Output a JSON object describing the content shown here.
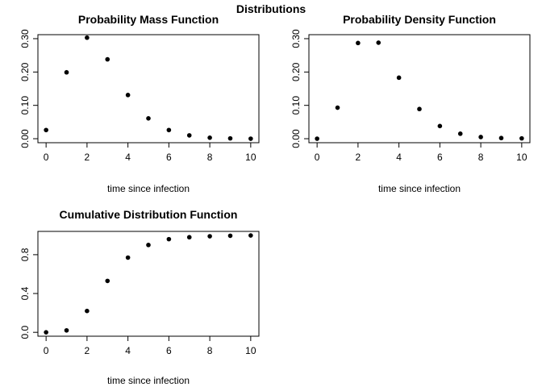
{
  "figure": {
    "title": "Distributions"
  },
  "chart_data": [
    {
      "type": "scatter",
      "title": "Probability Mass Function",
      "xlabel": "time since infection",
      "ylabel": "",
      "x": [
        0,
        1,
        2,
        3,
        4,
        5,
        6,
        7,
        8,
        9,
        10
      ],
      "y": [
        0.026,
        0.199,
        0.303,
        0.238,
        0.131,
        0.061,
        0.026,
        0.01,
        0.003,
        0.001,
        0.0
      ],
      "xlim": [
        0,
        10
      ],
      "ylim": [
        0,
        0.3
      ],
      "xticks": [
        "0",
        "2",
        "4",
        "6",
        "8",
        "10"
      ],
      "yticks": [
        "0.00",
        "0.10",
        "0.20",
        "0.30"
      ],
      "grid": false,
      "marker_color": "#000000"
    },
    {
      "type": "scatter",
      "title": "Probability Density Function",
      "xlabel": "time since infection",
      "ylabel": "",
      "x": [
        0,
        1,
        2,
        3,
        4,
        5,
        6,
        7,
        8,
        9,
        10
      ],
      "y": [
        0.0,
        0.093,
        0.287,
        0.288,
        0.183,
        0.089,
        0.038,
        0.015,
        0.005,
        0.002,
        0.001
      ],
      "xlim": [
        0,
        10
      ],
      "ylim": [
        0,
        0.3
      ],
      "xticks": [
        "0",
        "2",
        "4",
        "6",
        "8",
        "10"
      ],
      "yticks": [
        "0.00",
        "0.10",
        "0.20",
        "0.30"
      ],
      "grid": false,
      "marker_color": "#000000"
    },
    {
      "type": "scatter",
      "title": "Cumulative Distribution Function",
      "xlabel": "time since infection",
      "ylabel": "",
      "x": [
        0,
        1,
        2,
        3,
        4,
        5,
        6,
        7,
        8,
        9,
        10
      ],
      "y": [
        0.0,
        0.02,
        0.22,
        0.53,
        0.77,
        0.9,
        0.96,
        0.98,
        0.99,
        0.995,
        0.998
      ],
      "xlim": [
        0,
        10
      ],
      "ylim": [
        0,
        1
      ],
      "xticks": [
        "0",
        "2",
        "4",
        "6",
        "8",
        "10"
      ],
      "yticks": [
        "0.0",
        "0.4",
        "0.8"
      ],
      "grid": false,
      "marker_color": "#000000"
    }
  ]
}
